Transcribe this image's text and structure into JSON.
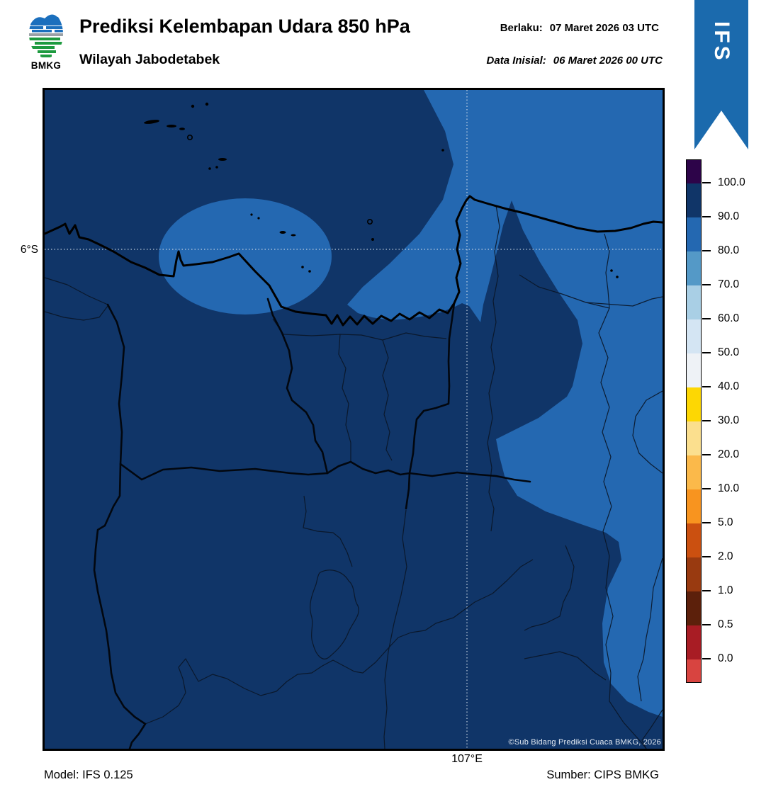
{
  "header": {
    "logo_label": "BMKG",
    "title": "Prediksi Kelembapan Udara 850 hPa",
    "subtitle": "Wilayah Jabodetabek",
    "valid_label": "Berlaku:",
    "valid_value": "07 Maret 2026 03 UTC",
    "init_label": "Data Inisial:",
    "init_value": "06 Maret 2026 00 UTC"
  },
  "ribbon": {
    "label": "IFS",
    "color": "#1b6aad"
  },
  "map": {
    "lat_tick": "6°S",
    "lon_tick": "107°E",
    "copyright": "©Sub Bidang Prediksi Cuaca BMKG, 2026",
    "colors": {
      "humidity_90_100": "#103568",
      "humidity_80_90": "#2468b1",
      "coastline": "#000000",
      "gridline": "#d8e2ec"
    }
  },
  "colorbar": {
    "tick_labels": [
      "100.0",
      "90.0",
      "80.0",
      "70.0",
      "60.0",
      "50.0",
      "40.0",
      "30.0",
      "20.0",
      "10.0",
      "5.0",
      "2.0",
      "1.0",
      "0.5",
      "0.0"
    ],
    "segment_colors_top_to_bottom": [
      "#2d0449",
      "#103568",
      "#2468b1",
      "#5499c7",
      "#a9cfe5",
      "#d4e5f3",
      "#eef2f6",
      "#fdd703",
      "#fbdf8e",
      "#fbb94a",
      "#f8941f",
      "#cb5010",
      "#993a10",
      "#5c200b",
      "#a81c24",
      "#d84440"
    ]
  },
  "footer": {
    "model": "Model: IFS 0.125",
    "source": "Sumber: CIPS BMKG"
  },
  "chart_data": {
    "type": "map",
    "title": "Prediksi Kelembapan Udara 850 hPa",
    "region": "Wilayah Jabodetabek",
    "valid_time": "07 Maret 2026 03 UTC",
    "initial_time": "06 Maret 2026 00 UTC",
    "model": "IFS 0.125",
    "source": "CIPS BMKG",
    "legend_levels": [
      100.0,
      90.0,
      80.0,
      70.0,
      60.0,
      50.0,
      40.0,
      30.0,
      20.0,
      10.0,
      5.0,
      2.0,
      1.0,
      0.5,
      0.0
    ],
    "gridline_labels": {
      "lat": "6°S",
      "lon": "107°E"
    },
    "depicted_bands": [
      {
        "range": "90-100",
        "color": "#103568",
        "coverage": "dominant background of map"
      },
      {
        "range": "80-90",
        "color": "#2468b1",
        "coverage": "oval patch offshore west, large lobe over bay and north coast, broad band along eastern edge"
      }
    ]
  }
}
